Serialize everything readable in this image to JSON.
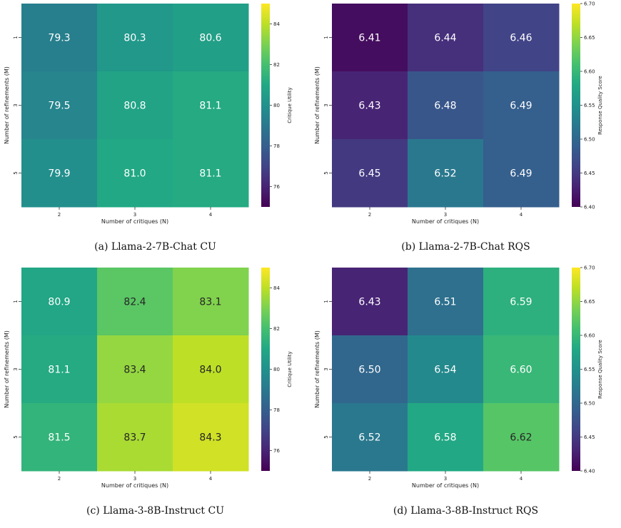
{
  "chart_data": [
    {
      "type": "heatmap",
      "caption": "(a)  Llama-2-7B-Chat CU",
      "xlabel": "Number of critiques (N)",
      "ylabel": "Number of refinements (M)",
      "x_categories": [
        "2",
        "3",
        "4"
      ],
      "y_categories": [
        "1",
        "3",
        "5"
      ],
      "values": [
        [
          79.3,
          80.3,
          80.6
        ],
        [
          79.5,
          80.8,
          81.1
        ],
        [
          79.9,
          81.0,
          81.1
        ]
      ],
      "colorbar_label": "Critique Utility",
      "colorbar_range": [
        75,
        85
      ],
      "colorbar_ticks": [
        "76",
        "78",
        "80",
        "82",
        "84"
      ],
      "colormap": "viridis"
    },
    {
      "type": "heatmap",
      "caption": "(b)  Llama-2-7B-Chat RQS",
      "xlabel": "Number of critiques (N)",
      "ylabel": "Number of refinements (M)",
      "x_categories": [
        "2",
        "3",
        "4"
      ],
      "y_categories": [
        "1",
        "3",
        "5"
      ],
      "values": [
        [
          6.41,
          6.44,
          6.46
        ],
        [
          6.43,
          6.48,
          6.49
        ],
        [
          6.45,
          6.52,
          6.49
        ]
      ],
      "colorbar_label": "Response Quality Score",
      "colorbar_range": [
        6.4,
        6.7
      ],
      "colorbar_ticks": [
        "6.40",
        "6.45",
        "6.50",
        "6.55",
        "6.60",
        "6.65",
        "6.70"
      ],
      "colormap": "viridis"
    },
    {
      "type": "heatmap",
      "caption": "(c)  Llama-3-8B-Instruct CU",
      "xlabel": "Number of critiques (N)",
      "ylabel": "Number of refinements (M)",
      "x_categories": [
        "2",
        "3",
        "4"
      ],
      "y_categories": [
        "1",
        "3",
        "5"
      ],
      "values": [
        [
          80.9,
          82.4,
          83.1
        ],
        [
          81.1,
          83.4,
          84.0
        ],
        [
          81.5,
          83.7,
          84.3
        ]
      ],
      "colorbar_label": "Critique Utility",
      "colorbar_range": [
        75,
        85
      ],
      "colorbar_ticks": [
        "76",
        "78",
        "80",
        "82",
        "84"
      ],
      "colormap": "viridis"
    },
    {
      "type": "heatmap",
      "caption": "(d)  Llama-3-8B-Instruct RQS",
      "xlabel": "Number of critiques (N)",
      "ylabel": "Number of refinements (M)",
      "x_categories": [
        "2",
        "3",
        "4"
      ],
      "y_categories": [
        "1",
        "3",
        "5"
      ],
      "values": [
        [
          6.43,
          6.51,
          6.59
        ],
        [
          6.5,
          6.54,
          6.6
        ],
        [
          6.52,
          6.58,
          6.62
        ]
      ],
      "colorbar_label": "Response Quality Score",
      "colorbar_range": [
        6.4,
        6.7
      ],
      "colorbar_ticks": [
        "6.40",
        "6.45",
        "6.50",
        "6.55",
        "6.60",
        "6.65",
        "6.70"
      ],
      "colormap": "viridis"
    }
  ]
}
